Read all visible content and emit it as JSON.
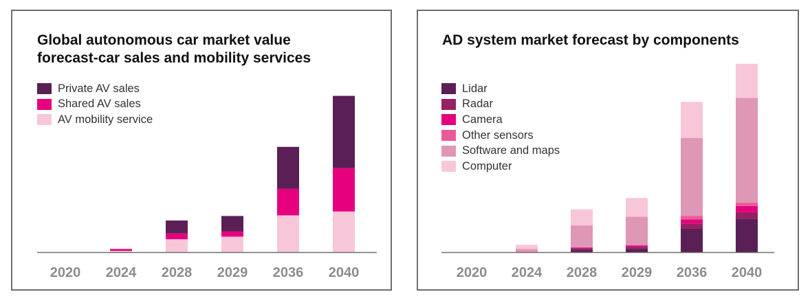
{
  "chart_data": [
    {
      "type": "bar",
      "stacked": true,
      "title": "Global autonomous car market value forecast-car sales and mobility services",
      "title_lines": [
        "Global autonomous car market value",
        "forecast-car sales and mobility services"
      ],
      "categories": [
        "2020",
        "2024",
        "2028",
        "2029",
        "2036",
        "2040"
      ],
      "series": [
        {
          "name": "AV mobility service",
          "color": "#f7c6d9",
          "values": [
            0,
            2,
            20,
            24,
            57,
            63
          ]
        },
        {
          "name": "Shared AV sales",
          "color": "#e6007e",
          "values": [
            0,
            3,
            9,
            8,
            41,
            67
          ]
        },
        {
          "name": "Private AV sales",
          "color": "#5a1f55",
          "values": [
            0,
            0,
            20,
            24,
            65,
            112
          ]
        }
      ],
      "legend": [
        "Private AV sales",
        "Shared AV sales",
        "AV mobility service"
      ],
      "xlabel": "",
      "ylabel": "",
      "ylim": [
        0,
        250
      ],
      "grid": false
    },
    {
      "type": "bar",
      "stacked": true,
      "title": "AD system market forecast by components",
      "title_lines": [
        "AD system market forecast by components"
      ],
      "categories": [
        "2020",
        "2024",
        "2028",
        "2029",
        "2036",
        "2040"
      ],
      "series": [
        {
          "name": "Lidar",
          "color": "#5a1f55",
          "values": [
            0,
            0,
            3,
            5,
            35,
            50
          ]
        },
        {
          "name": "Radar",
          "color": "#962063",
          "values": [
            0,
            0,
            3,
            3,
            8,
            10
          ]
        },
        {
          "name": "Camera",
          "color": "#e6007e",
          "values": [
            0,
            0,
            1,
            2,
            6,
            9
          ]
        },
        {
          "name": "Other sensors",
          "color": "#eb5a98",
          "values": [
            0,
            0,
            0,
            1,
            5,
            5
          ]
        },
        {
          "name": "Software and maps",
          "color": "#df97b6",
          "values": [
            0,
            5,
            33,
            42,
            117,
            157
          ]
        },
        {
          "name": "Computer",
          "color": "#f7c6d9",
          "values": [
            0,
            6,
            24,
            28,
            54,
            51
          ]
        }
      ],
      "legend": [
        "Lidar",
        "Radar",
        "Camera",
        "Other sensors",
        "Software and maps",
        "Computer"
      ],
      "xlabel": "",
      "ylabel": "",
      "ylim": [
        0,
        290
      ],
      "grid": false
    }
  ]
}
